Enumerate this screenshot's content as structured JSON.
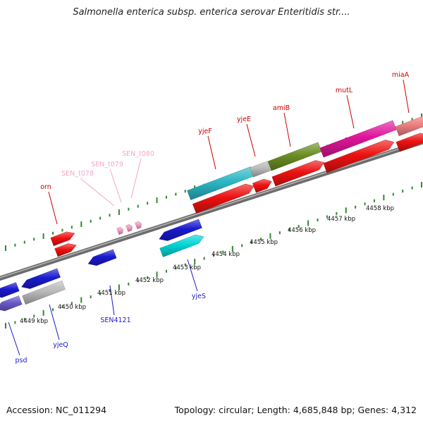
{
  "title": "Salmonella enterica subsp. enterica serovar Enteritidis str....",
  "footer": {
    "accession": "Accession: NC_011294",
    "summary": "Topology: circular; Length: 4,685,848 bp; Genes: 4,312"
  },
  "scale": {
    "unit": "kbp",
    "ticks": [
      "4449 kbp",
      "4450 kbp",
      "4451 kbp",
      "4452 kbp",
      "4453 kbp",
      "4454 kbp",
      "4455 kbp",
      "4456 kbp",
      "4457 kbp",
      "4458 kbp"
    ]
  },
  "colors": {
    "red": "#ee1111",
    "blue": "#1a1ad0",
    "cyan": "#00d4d4",
    "teal": "#2ab7c4",
    "gray": "#b9b9b9",
    "olive": "#6b8e23",
    "magenta": "#e0159a",
    "salmon": "#f08080",
    "slate": "#6a5acd",
    "pink": "#f39ac4",
    "backbone": "#8c8c8c",
    "tick": "#2e8b2e"
  },
  "genes": {
    "top_labeled": [
      {
        "name": "orn",
        "color": "#cc0000"
      },
      {
        "name": "SEN_t078",
        "color": "#f4a6c8"
      },
      {
        "name": "SEN_t079",
        "color": "#f4a6c8"
      },
      {
        "name": "SEN_t080",
        "color": "#f4a6c8"
      },
      {
        "name": "yjeF",
        "color": "#cc0000"
      },
      {
        "name": "yjeE",
        "color": "#cc0000"
      },
      {
        "name": "amiB",
        "color": "#cc0000"
      },
      {
        "name": "mutL",
        "color": "#cc0000"
      },
      {
        "name": "miaA",
        "color": "#cc0000"
      }
    ],
    "bottom_labeled": [
      {
        "name": "psd",
        "color": "#1a1ad0"
      },
      {
        "name": "yjeQ",
        "color": "#1a1ad0"
      },
      {
        "name": "SEN4121",
        "color": "#1a1ad0"
      },
      {
        "name": "yjeS",
        "color": "#1a1ad0"
      }
    ]
  }
}
